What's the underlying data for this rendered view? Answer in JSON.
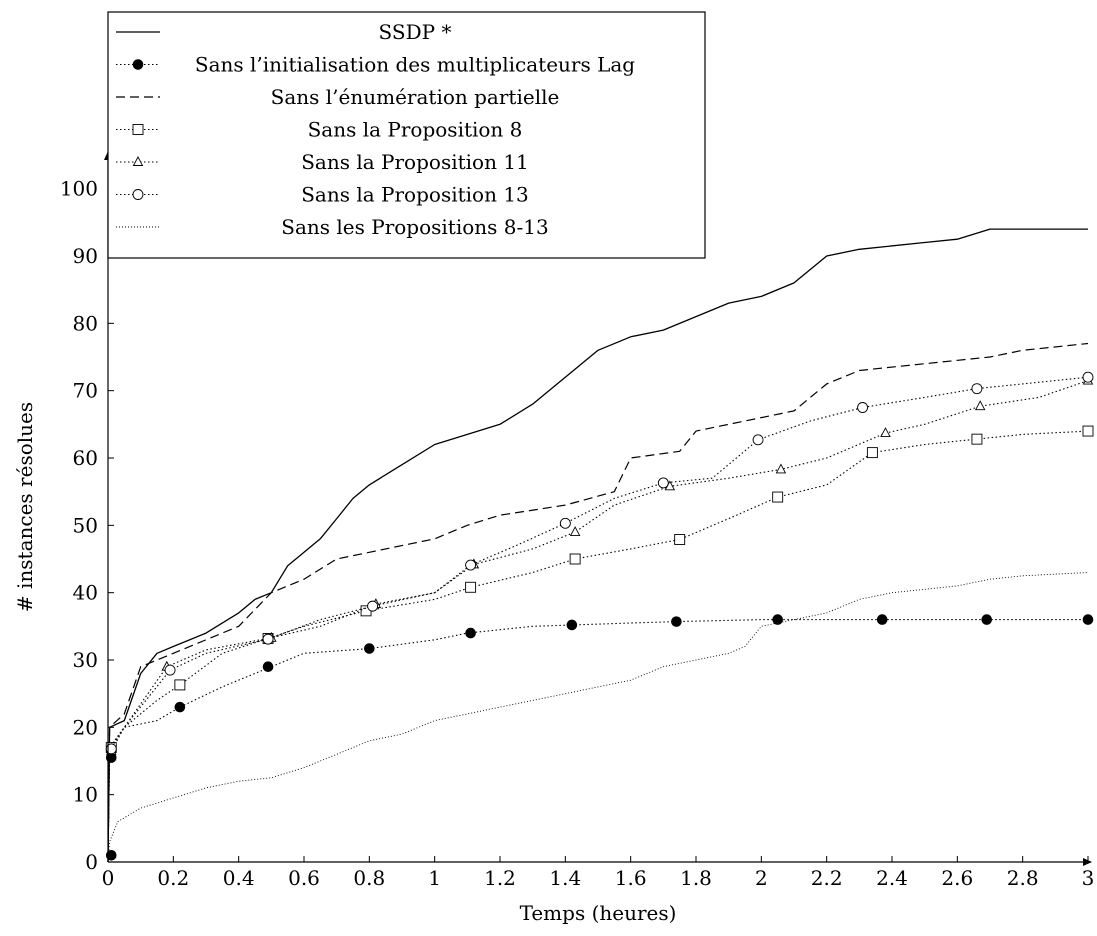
{
  "chart_data": {
    "type": "line",
    "title": "",
    "xlabel": "Temps (heures)",
    "ylabel": "# instances résolues",
    "xlim": [
      0,
      3
    ],
    "ylim": [
      0,
      105
    ],
    "xticks": [
      "0",
      "0.2",
      "0.4",
      "0.6",
      "0.8",
      "1",
      "1.2",
      "1.4",
      "1.6",
      "1.8",
      "2",
      "2.2",
      "2.4",
      "2.6",
      "2.8",
      "3"
    ],
    "yticks": [
      "0",
      "10",
      "20",
      "30",
      "40",
      "50",
      "60",
      "70",
      "80",
      "90",
      "100"
    ],
    "grid": false,
    "legend_position": "top-left",
    "series": [
      {
        "name": "SSDP *",
        "style": "solid",
        "marker": "none",
        "points": [
          [
            0,
            0
          ],
          [
            0.005,
            20
          ],
          [
            0.05,
            21
          ],
          [
            0.1,
            28
          ],
          [
            0.15,
            31
          ],
          [
            0.2,
            32
          ],
          [
            0.3,
            34
          ],
          [
            0.4,
            37
          ],
          [
            0.45,
            39
          ],
          [
            0.5,
            40
          ],
          [
            0.55,
            44
          ],
          [
            0.6,
            46
          ],
          [
            0.65,
            48
          ],
          [
            0.7,
            51
          ],
          [
            0.75,
            54
          ],
          [
            0.8,
            56
          ],
          [
            0.9,
            59
          ],
          [
            1.0,
            62
          ],
          [
            1.2,
            65
          ],
          [
            1.3,
            68
          ],
          [
            1.4,
            72
          ],
          [
            1.5,
            76
          ],
          [
            1.6,
            78
          ],
          [
            1.7,
            79
          ],
          [
            1.8,
            81
          ],
          [
            1.9,
            83
          ],
          [
            2.0,
            84
          ],
          [
            2.1,
            86
          ],
          [
            2.2,
            90
          ],
          [
            2.3,
            91
          ],
          [
            2.5,
            92
          ],
          [
            2.6,
            92.5
          ],
          [
            2.7,
            94
          ],
          [
            3.0,
            94
          ]
        ]
      },
      {
        "name": "Sans l’initialisation des multiplicateurs Lag",
        "style": "dotted",
        "marker": "filled-circle",
        "points": [
          [
            0,
            1
          ],
          [
            0.005,
            15.5
          ],
          [
            0.01,
            16.5
          ],
          [
            0.05,
            20
          ],
          [
            0.15,
            21
          ],
          [
            0.22,
            23
          ],
          [
            0.35,
            26
          ],
          [
            0.5,
            29
          ],
          [
            0.6,
            31
          ],
          [
            0.8,
            31.7
          ],
          [
            1.0,
            33
          ],
          [
            1.1,
            34
          ],
          [
            1.3,
            35
          ],
          [
            1.42,
            35.2
          ],
          [
            1.6,
            35.5
          ],
          [
            1.74,
            35.7
          ],
          [
            2.0,
            36
          ],
          [
            2.05,
            36
          ],
          [
            2.37,
            36
          ],
          [
            2.69,
            36
          ],
          [
            3.0,
            36
          ]
        ],
        "marker_points": [
          [
            0.01,
            1
          ],
          [
            0.01,
            15.5
          ],
          [
            0.22,
            23
          ],
          [
            0.49,
            29
          ],
          [
            0.8,
            31.7
          ],
          [
            1.11,
            34
          ],
          [
            1.42,
            35.2
          ],
          [
            1.74,
            35.7
          ],
          [
            2.05,
            36
          ],
          [
            2.37,
            36
          ],
          [
            2.69,
            36
          ],
          [
            3.0,
            36
          ]
        ]
      },
      {
        "name": "Sans l’énumération partielle",
        "style": "dashed",
        "marker": "none",
        "points": [
          [
            0,
            0
          ],
          [
            0.005,
            20
          ],
          [
            0.05,
            22
          ],
          [
            0.1,
            29
          ],
          [
            0.2,
            31
          ],
          [
            0.3,
            33
          ],
          [
            0.4,
            35
          ],
          [
            0.5,
            40
          ],
          [
            0.6,
            42
          ],
          [
            0.7,
            45
          ],
          [
            0.8,
            46
          ],
          [
            1.0,
            48
          ],
          [
            1.1,
            50
          ],
          [
            1.2,
            51.5
          ],
          [
            1.4,
            53
          ],
          [
            1.55,
            55
          ],
          [
            1.6,
            60
          ],
          [
            1.75,
            61
          ],
          [
            1.8,
            64
          ],
          [
            1.9,
            65
          ],
          [
            2.0,
            66
          ],
          [
            2.1,
            67
          ],
          [
            2.2,
            71
          ],
          [
            2.3,
            73
          ],
          [
            2.5,
            74
          ],
          [
            2.7,
            75
          ],
          [
            2.8,
            76
          ],
          [
            3.0,
            77
          ]
        ]
      },
      {
        "name": "Sans la Proposition 8",
        "style": "dotted",
        "marker": "open-square",
        "points": [
          [
            0,
            0
          ],
          [
            0.005,
            17
          ],
          [
            0.05,
            20
          ],
          [
            0.15,
            24
          ],
          [
            0.22,
            26.3
          ],
          [
            0.35,
            31
          ],
          [
            0.49,
            33.2
          ],
          [
            0.6,
            35
          ],
          [
            0.79,
            37.3
          ],
          [
            1.0,
            39
          ],
          [
            1.11,
            40.8
          ],
          [
            1.3,
            43
          ],
          [
            1.43,
            45
          ],
          [
            1.6,
            46.5
          ],
          [
            1.75,
            47.9
          ],
          [
            1.9,
            51
          ],
          [
            2.05,
            54.2
          ],
          [
            2.2,
            56
          ],
          [
            2.34,
            60.8
          ],
          [
            2.5,
            62
          ],
          [
            2.66,
            62.8
          ],
          [
            2.8,
            63.5
          ],
          [
            3.0,
            64
          ]
        ],
        "marker_points": [
          [
            0.01,
            17
          ],
          [
            0.22,
            26.3
          ],
          [
            0.49,
            33.2
          ],
          [
            0.79,
            37.3
          ],
          [
            1.11,
            40.8
          ],
          [
            1.43,
            45
          ],
          [
            1.75,
            47.9
          ],
          [
            2.05,
            54.2
          ],
          [
            2.34,
            60.8
          ],
          [
            2.66,
            62.8
          ],
          [
            3.0,
            64
          ]
        ]
      },
      {
        "name": "Sans la Proposition 11",
        "style": "dotted",
        "marker": "open-triangle",
        "points": [
          [
            0,
            0
          ],
          [
            0.005,
            16.5
          ],
          [
            0.05,
            20
          ],
          [
            0.18,
            29
          ],
          [
            0.3,
            31.5
          ],
          [
            0.5,
            33.3
          ],
          [
            0.65,
            35
          ],
          [
            0.82,
            38.3
          ],
          [
            1.0,
            40
          ],
          [
            1.12,
            44.2
          ],
          [
            1.3,
            46.5
          ],
          [
            1.43,
            49
          ],
          [
            1.55,
            53
          ],
          [
            1.72,
            55.8
          ],
          [
            1.9,
            57
          ],
          [
            2.06,
            58.3
          ],
          [
            2.2,
            60
          ],
          [
            2.38,
            63.7
          ],
          [
            2.5,
            65
          ],
          [
            2.67,
            67.7
          ],
          [
            2.85,
            69
          ],
          [
            3.0,
            71.5
          ]
        ],
        "marker_points": [
          [
            0.01,
            16.5
          ],
          [
            0.18,
            29
          ],
          [
            0.5,
            33.3
          ],
          [
            0.82,
            38.3
          ],
          [
            1.12,
            44.2
          ],
          [
            1.43,
            49
          ],
          [
            1.72,
            55.8
          ],
          [
            2.06,
            58.3
          ],
          [
            2.38,
            63.7
          ],
          [
            2.67,
            67.7
          ],
          [
            3.0,
            71.5
          ]
        ]
      },
      {
        "name": "Sans la Proposition 13",
        "style": "dotted",
        "marker": "open-circle",
        "points": [
          [
            0,
            0
          ],
          [
            0.005,
            16.8
          ],
          [
            0.05,
            20
          ],
          [
            0.19,
            28.5
          ],
          [
            0.3,
            31
          ],
          [
            0.49,
            33.1
          ],
          [
            0.65,
            36
          ],
          [
            0.81,
            38
          ],
          [
            1.0,
            40
          ],
          [
            1.11,
            44.1
          ],
          [
            1.25,
            47
          ],
          [
            1.4,
            50.3
          ],
          [
            1.55,
            54
          ],
          [
            1.7,
            56.3
          ],
          [
            1.85,
            57
          ],
          [
            1.99,
            62.7
          ],
          [
            2.15,
            65.5
          ],
          [
            2.31,
            67.5
          ],
          [
            2.5,
            69
          ],
          [
            2.66,
            70.3
          ],
          [
            2.8,
            71
          ],
          [
            3.0,
            72
          ]
        ],
        "marker_points": [
          [
            0.01,
            16.8
          ],
          [
            0.19,
            28.5
          ],
          [
            0.49,
            33.1
          ],
          [
            0.81,
            38
          ],
          [
            1.11,
            44.1
          ],
          [
            1.4,
            50.3
          ],
          [
            1.7,
            56.3
          ],
          [
            1.99,
            62.7
          ],
          [
            2.31,
            67.5
          ],
          [
            2.66,
            70.3
          ],
          [
            3.0,
            72
          ]
        ]
      },
      {
        "name": "Sans les Propositions 8-13",
        "style": "fine-dotted",
        "marker": "none",
        "points": [
          [
            0,
            0
          ],
          [
            0.005,
            3
          ],
          [
            0.03,
            6
          ],
          [
            0.1,
            8
          ],
          [
            0.2,
            9.5
          ],
          [
            0.3,
            11
          ],
          [
            0.4,
            12
          ],
          [
            0.5,
            12.5
          ],
          [
            0.6,
            14
          ],
          [
            0.7,
            16
          ],
          [
            0.8,
            18
          ],
          [
            0.9,
            19
          ],
          [
            1.0,
            21
          ],
          [
            1.1,
            22
          ],
          [
            1.2,
            23
          ],
          [
            1.3,
            24
          ],
          [
            1.4,
            25
          ],
          [
            1.5,
            26
          ],
          [
            1.6,
            27
          ],
          [
            1.7,
            29
          ],
          [
            1.8,
            30
          ],
          [
            1.9,
            31
          ],
          [
            1.95,
            32
          ],
          [
            2.0,
            35
          ],
          [
            2.1,
            36
          ],
          [
            2.2,
            37
          ],
          [
            2.3,
            39
          ],
          [
            2.4,
            40
          ],
          [
            2.6,
            41
          ],
          [
            2.7,
            42
          ],
          [
            2.8,
            42.5
          ],
          [
            3.0,
            43
          ]
        ]
      }
    ]
  }
}
